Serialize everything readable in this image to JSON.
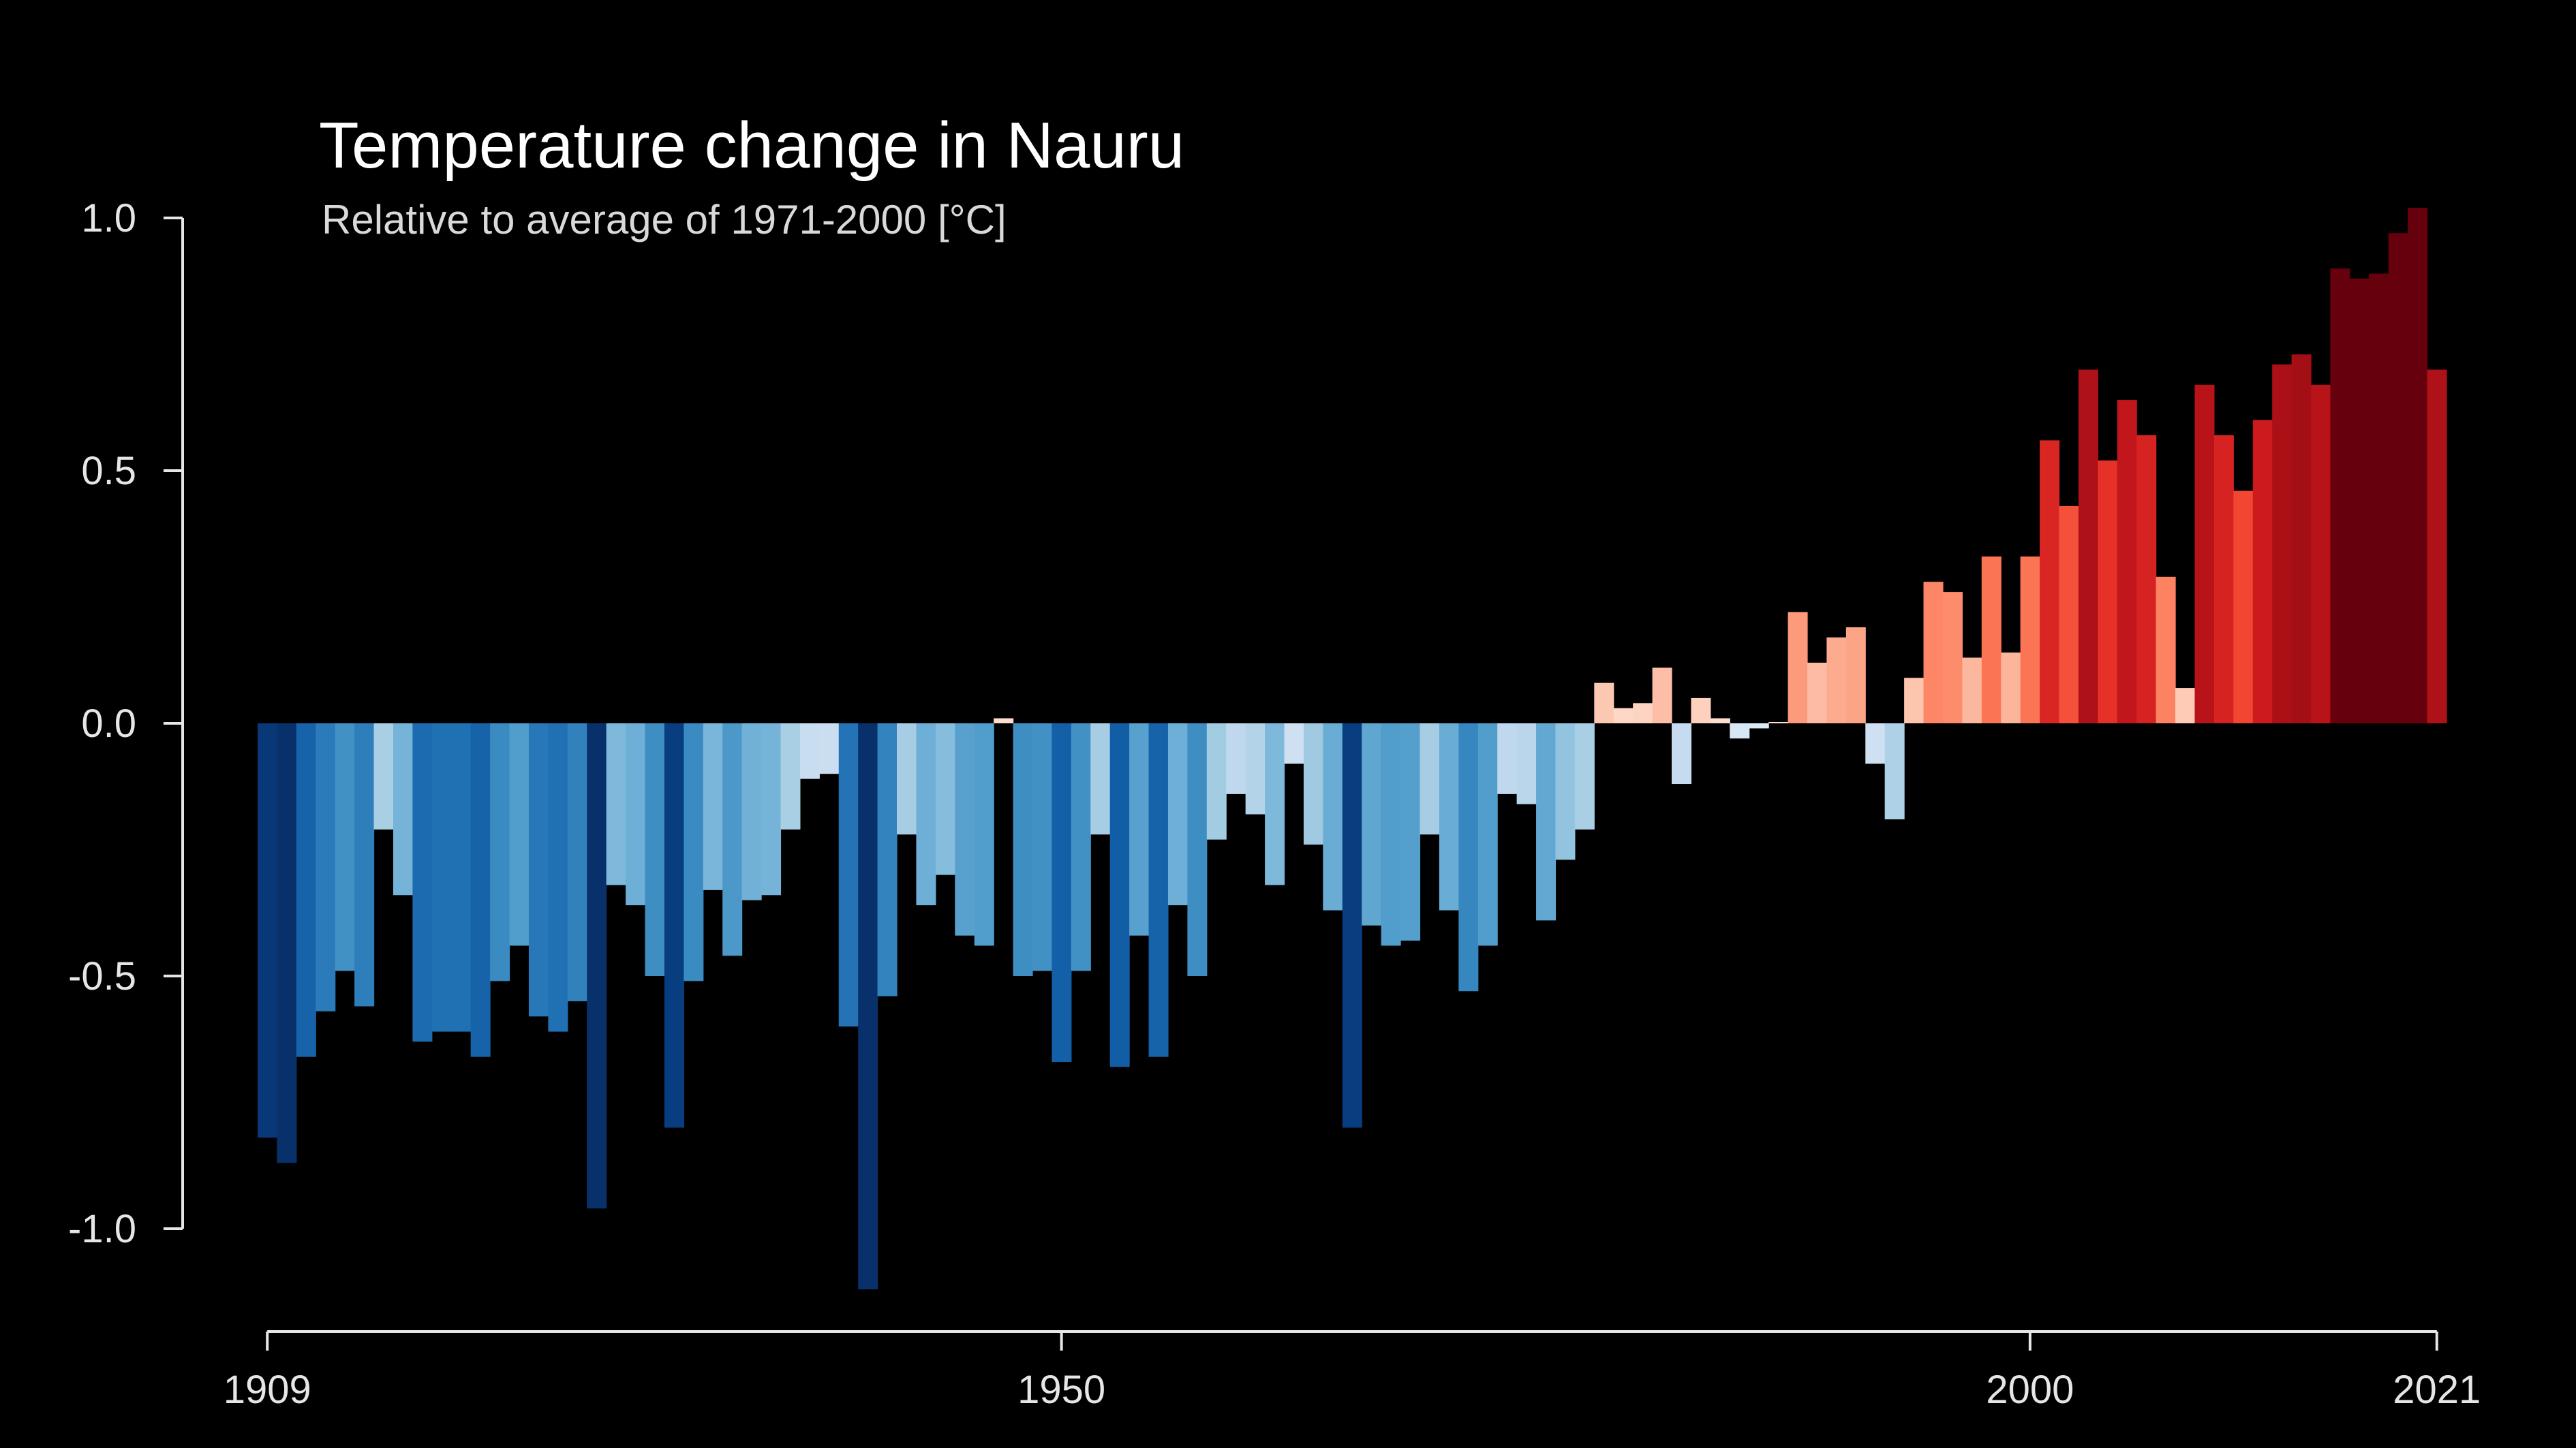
{
  "chart_data": {
    "type": "bar",
    "title": "Temperature change in Nauru",
    "subtitle": "Relative to average of 1971-2000  [°C]",
    "xlabel": "",
    "ylabel": "",
    "x_start": 1909,
    "x_end": 2021,
    "xticks": [
      1909,
      1950,
      2000,
      2021
    ],
    "xtick_labels": [
      "1909",
      "1950",
      "2000",
      "2021"
    ],
    "yticks": [
      1.0,
      0.5,
      0.0,
      -0.5,
      -1.0
    ],
    "ytick_labels": [
      "1.0",
      "0.5",
      "0.0",
      "-0.5",
      "-1.0"
    ],
    "ylim": [
      -1.0,
      1.0
    ],
    "grid": false,
    "legend": "none",
    "color_scale": {
      "neg_strong": "#08306b",
      "neg_light": "#deebf7",
      "pos_light": "#fee0d2",
      "pos_strong": "#67000d"
    },
    "categories": [
      1909,
      1910,
      1911,
      1912,
      1913,
      1914,
      1915,
      1916,
      1917,
      1918,
      1919,
      1920,
      1921,
      1922,
      1923,
      1924,
      1925,
      1926,
      1927,
      1928,
      1929,
      1930,
      1931,
      1932,
      1933,
      1934,
      1935,
      1936,
      1937,
      1938,
      1939,
      1940,
      1941,
      1942,
      1943,
      1944,
      1945,
      1946,
      1947,
      1948,
      1949,
      1950,
      1951,
      1952,
      1953,
      1954,
      1955,
      1956,
      1957,
      1958,
      1959,
      1960,
      1961,
      1962,
      1963,
      1964,
      1965,
      1966,
      1967,
      1968,
      1969,
      1970,
      1971,
      1972,
      1973,
      1974,
      1975,
      1976,
      1977,
      1978,
      1979,
      1980,
      1981,
      1982,
      1983,
      1984,
      1985,
      1986,
      1987,
      1988,
      1989,
      1990,
      1991,
      1992,
      1993,
      1994,
      1995,
      1996,
      1997,
      1998,
      1999,
      2000,
      2001,
      2002,
      2003,
      2004,
      2005,
      2006,
      2007,
      2008,
      2009,
      2010,
      2011,
      2012,
      2013,
      2014,
      2015,
      2016,
      2017,
      2018,
      2019,
      2020,
      2021
    ],
    "values": [
      -0.82,
      -0.87,
      -0.66,
      -0.57,
      -0.49,
      -0.56,
      -0.21,
      -0.34,
      -0.63,
      -0.61,
      -0.61,
      -0.66,
      -0.51,
      -0.44,
      -0.58,
      -0.61,
      -0.55,
      -0.96,
      -0.32,
      -0.36,
      -0.5,
      -0.8,
      -0.51,
      -0.33,
      -0.46,
      -0.35,
      -0.34,
      -0.21,
      -0.11,
      -0.1,
      -0.6,
      -1.12,
      -0.54,
      -0.22,
      -0.36,
      -0.3,
      -0.42,
      -0.44,
      0.01,
      -0.5,
      -0.49,
      -0.67,
      -0.49,
      -0.22,
      -0.68,
      -0.42,
      -0.66,
      -0.36,
      -0.5,
      -0.23,
      -0.14,
      -0.18,
      -0.32,
      -0.08,
      -0.24,
      -0.37,
      -0.8,
      -0.4,
      -0.44,
      -0.43,
      -0.22,
      -0.37,
      -0.53,
      -0.44,
      -0.14,
      -0.16,
      -0.39,
      -0.27,
      -0.21,
      0.08,
      0.03,
      0.04,
      0.11,
      -0.12,
      0.05,
      0.01,
      -0.03,
      -0.01,
      0.0,
      0.22,
      0.12,
      0.17,
      0.19,
      -0.08,
      -0.19,
      0.09,
      0.28,
      0.26,
      0.13,
      0.33,
      0.14,
      0.33,
      0.56,
      0.43,
      0.7,
      0.52,
      0.64,
      0.57,
      0.29,
      0.07,
      0.67,
      0.57,
      0.46,
      0.6,
      0.71,
      0.73,
      0.67,
      0.9,
      0.88,
      0.89,
      0.97,
      1.02,
      0.7
    ]
  }
}
